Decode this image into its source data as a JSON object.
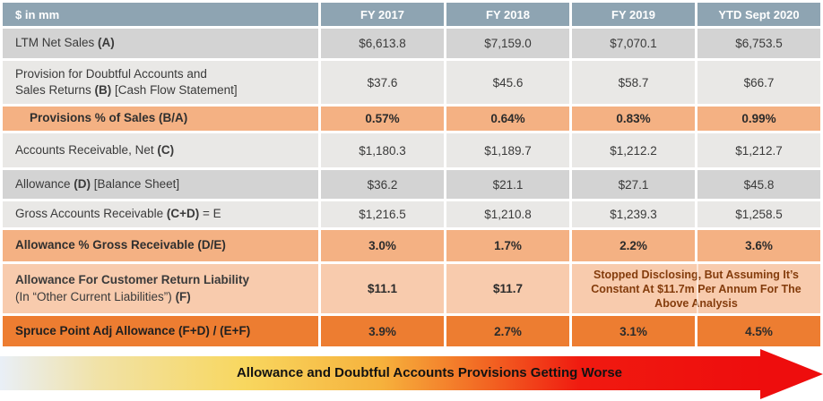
{
  "table": {
    "header": {
      "corner": "$ in mm",
      "columns": [
        "FY 2017",
        "FY 2018",
        "FY 2019",
        "YTD Sept 2020"
      ],
      "bg": "#8EA4B2",
      "text_color": "#FFFFFF"
    },
    "rows": [
      {
        "name": "ltm-net-sales",
        "style": "gray-dark",
        "height": 33,
        "label_lines": [
          [
            {
              "t": "LTM Net Sales ",
              "b": 0
            },
            {
              "t": "(A)",
              "b": 1
            }
          ]
        ],
        "values": [
          "$6,613.8",
          "$7,159.0",
          "$7,070.1",
          "$6,753.5"
        ],
        "values_bold": false
      },
      {
        "name": "provision-doubtful-accounts",
        "style": "gray-light",
        "height": 48,
        "label_lines": [
          [
            {
              "t": "Provision for Doubtful Accounts and",
              "b": 0
            }
          ],
          [
            {
              "t": "Sales Returns ",
              "b": 0
            },
            {
              "t": "(B)",
              "b": 1
            },
            {
              "t": " [Cash Flow Statement]",
              "b": 0
            }
          ]
        ],
        "values": [
          "$37.6",
          "$45.6",
          "$58.7",
          "$66.7"
        ],
        "values_bold": false
      },
      {
        "name": "provisions-pct-of-sales",
        "style": "orange",
        "height": 27,
        "indent": true,
        "label_lines": [
          [
            {
              "t": "Provisions % of Sales  (B/A)",
              "b": 1
            }
          ]
        ],
        "values": [
          "0.57%",
          "0.64%",
          "0.83%",
          "0.99%"
        ],
        "values_bold": true
      },
      {
        "name": "accounts-receivable-net",
        "style": "gray-light",
        "height": 38,
        "label_lines": [
          [
            {
              "t": "Accounts Receivable, Net ",
              "b": 0
            },
            {
              "t": "(C)",
              "b": 1
            }
          ]
        ],
        "values": [
          "$1,180.3",
          "$1,189.7",
          "$1,212.2",
          "$1,212.7"
        ],
        "values_bold": false
      },
      {
        "name": "allowance-balance-sheet",
        "style": "gray-dark",
        "height": 32,
        "label_lines": [
          [
            {
              "t": "Allowance ",
              "b": 0
            },
            {
              "t": "(D)",
              "b": 1
            },
            {
              "t": " [Balance Sheet]",
              "b": 0
            }
          ]
        ],
        "values": [
          "$36.2",
          "$21.1",
          "$27.1",
          "$45.8"
        ],
        "values_bold": false
      },
      {
        "name": "gross-accounts-receivable",
        "style": "gray-light",
        "height": 29,
        "label_lines": [
          [
            {
              "t": "Gross Accounts Receivable ",
              "b": 0
            },
            {
              "t": "(C+D)",
              "b": 1
            },
            {
              "t": " = E",
              "b": 0
            }
          ]
        ],
        "values": [
          "$1,216.5",
          "$1,210.8",
          "$1,239.3",
          "$1,258.5"
        ],
        "values_bold": false
      },
      {
        "name": "allowance-pct-gross-receivable",
        "style": "orange",
        "height": 35,
        "label_lines": [
          [
            {
              "t": "Allowance % Gross Receivable (D/E)",
              "b": 1
            }
          ]
        ],
        "values": [
          "3.0%",
          "1.7%",
          "2.2%",
          "3.6%"
        ],
        "values_bold": true
      },
      {
        "name": "allowance-customer-return-liability",
        "style": "peach",
        "height": 55,
        "label_lines": [
          [
            {
              "t": "Allowance For Customer Return Liability",
              "b": 1
            }
          ],
          [
            {
              "t": "(In “Other Current Liabilities”) ",
              "b": 0
            },
            {
              "t": "(F)",
              "b": 1
            }
          ]
        ],
        "values": [
          "$11.1",
          "$11.7"
        ],
        "values_bold": true,
        "merged_note": {
          "text": "Stopped Disclosing, But Assuming It’s Constant At $11.7m  Per Annum For The Above Analysis",
          "bg": "#FFD966",
          "text_color": "#843C0C",
          "colspan": 2
        }
      },
      {
        "name": "spruce-point-adj-allowance",
        "style": "deep",
        "height": 34,
        "label_lines": [
          [
            {
              "t": "Spruce Point Adj Allowance (F+D) / (E+F)",
              "b": 1
            }
          ]
        ],
        "values": [
          "3.9%",
          "2.7%",
          "3.1%",
          "4.5%"
        ],
        "values_bold": true
      }
    ]
  },
  "banner": {
    "text": "Allowance and Doubtful Accounts  Provisions Getting Worse",
    "arrow_color": "#EE0D0D",
    "gradient": [
      "#E9EFF7",
      "#F1E2A6",
      "#F8D75F",
      "#F6B13C",
      "#F26422",
      "#EE0D0D"
    ]
  },
  "colors": {
    "header_bg": "#8EA4B2",
    "row_gray_dark": "#D3D3D3",
    "row_gray_light": "#E9E8E6",
    "row_orange": "#F4B183",
    "row_peach": "#F8CBAD",
    "row_deep_orange": "#ED7D31",
    "note_yellow": "#FFD966",
    "note_text": "#843C0C"
  }
}
